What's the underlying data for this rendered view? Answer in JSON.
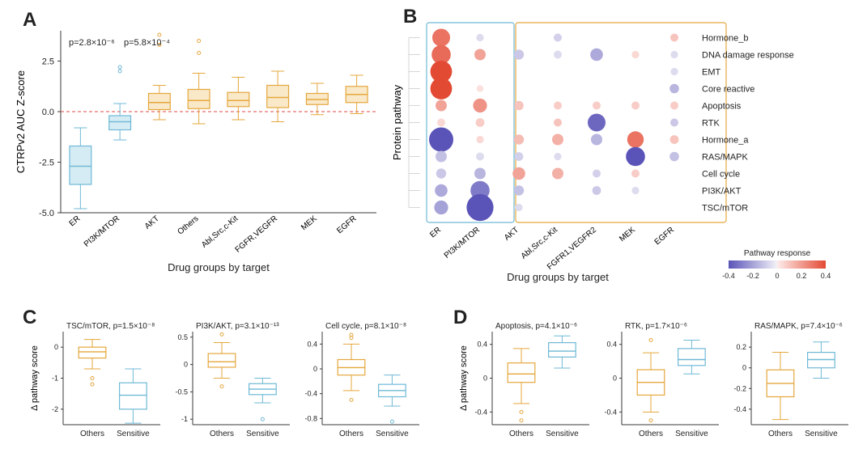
{
  "colors": {
    "blue": "#6fb9d6",
    "blue_fill": "#d6ecf4",
    "orange": "#e5a73d",
    "orange_fill": "#f9e9c9",
    "axis": "#3a3a3a",
    "grid": "#cccccc",
    "zero_line": "#e04848",
    "text": "#222222"
  },
  "panelA": {
    "letter": "A",
    "y_label": "CTRPv2 AUC Z-score",
    "x_label": "Drug groups by target",
    "pvals": [
      "p=2.8×10⁻⁶",
      "p=5.8×10⁻⁴"
    ],
    "y_min": -5,
    "y_max": 4,
    "y_ticks": [
      -5.0,
      -2.5,
      0.0,
      2.5
    ],
    "groups": [
      {
        "name": "ER",
        "color": "blue",
        "q1": -3.6,
        "med": -2.7,
        "q3": -1.7,
        "lo": -4.8,
        "hi": -0.8,
        "out": []
      },
      {
        "name": "PI3K/MTOR",
        "color": "blue",
        "q1": -0.9,
        "med": -0.5,
        "q3": -0.2,
        "lo": -1.4,
        "hi": 0.4,
        "out": [
          2.2,
          2.0
        ]
      },
      {
        "name": "AKT",
        "color": "orange",
        "q1": 0.1,
        "med": 0.45,
        "q3": 0.9,
        "lo": -0.4,
        "hi": 1.3,
        "out": [
          3.8,
          3.3
        ]
      },
      {
        "name": "Others",
        "color": "orange",
        "q1": 0.15,
        "med": 0.55,
        "q3": 1.1,
        "lo": -0.6,
        "hi": 1.9,
        "out": [
          3.5,
          2.9
        ]
      },
      {
        "name": "Abl,Src,c-Kit",
        "color": "orange",
        "q1": 0.25,
        "med": 0.55,
        "q3": 0.95,
        "lo": -0.4,
        "hi": 1.7,
        "out": []
      },
      {
        "name": "FGFR,VEGFR",
        "color": "orange",
        "q1": 0.2,
        "med": 0.7,
        "q3": 1.3,
        "lo": -0.5,
        "hi": 2.0,
        "out": []
      },
      {
        "name": "MEK",
        "color": "orange",
        "q1": 0.35,
        "med": 0.6,
        "q3": 0.9,
        "lo": -0.15,
        "hi": 1.4,
        "out": []
      },
      {
        "name": "EGFR",
        "color": "orange",
        "q1": 0.45,
        "med": 0.85,
        "q3": 1.25,
        "lo": -0.1,
        "hi": 1.8,
        "out": []
      }
    ]
  },
  "panelB": {
    "letter": "B",
    "x_label": "Drug groups by target",
    "y_label": "Protein pathway",
    "legend_title": "Pathway response",
    "legend_ticks": [
      -0.4,
      -0.2,
      0,
      0.2,
      0.4
    ],
    "cols": [
      "ER",
      "PI3K/MTOR",
      "AKT",
      "Abl,Src,c-Kit",
      "FGFR1,VEGFR2",
      "MEK",
      "EGFR"
    ],
    "rows": [
      "Hormone_b",
      "DNA damage response",
      "EMT",
      "Core reactive",
      "Apoptosis",
      "RTK",
      "Hormone_a",
      "RAS/MAPK",
      "Cell cycle",
      "PI3K/AKT",
      "TSC/mTOR"
    ],
    "group_box": {
      "blue": [
        0,
        1
      ],
      "orange": [
        2,
        6
      ]
    },
    "dots": [
      {
        "r": 0,
        "c": 0,
        "v": 0.3,
        "s": 2.0
      },
      {
        "r": 0,
        "c": 1,
        "v": -0.05,
        "s": 0.4
      },
      {
        "r": 0,
        "c": 3,
        "v": -0.08,
        "s": 0.5
      },
      {
        "r": 0,
        "c": 6,
        "v": 0.1,
        "s": 0.5
      },
      {
        "r": 1,
        "c": 0,
        "v": 0.32,
        "s": 2.2
      },
      {
        "r": 1,
        "c": 1,
        "v": 0.18,
        "s": 1.0
      },
      {
        "r": 1,
        "c": 2,
        "v": -0.1,
        "s": 0.8
      },
      {
        "r": 1,
        "c": 3,
        "v": -0.05,
        "s": 0.5
      },
      {
        "r": 1,
        "c": 4,
        "v": -0.18,
        "s": 1.2
      },
      {
        "r": 1,
        "c": 5,
        "v": 0.05,
        "s": 0.4
      },
      {
        "r": 1,
        "c": 6,
        "v": -0.05,
        "s": 0.4
      },
      {
        "r": 2,
        "c": 0,
        "v": 0.4,
        "s": 2.6
      },
      {
        "r": 2,
        "c": 6,
        "v": -0.05,
        "s": 0.4
      },
      {
        "r": 3,
        "c": 0,
        "v": 0.4,
        "s": 2.6
      },
      {
        "r": 3,
        "c": 1,
        "v": 0.03,
        "s": 0.3
      },
      {
        "r": 3,
        "c": 6,
        "v": -0.15,
        "s": 0.7
      },
      {
        "r": 4,
        "c": 0,
        "v": 0.18,
        "s": 1.0
      },
      {
        "r": 4,
        "c": 1,
        "v": 0.22,
        "s": 1.4
      },
      {
        "r": 4,
        "c": 2,
        "v": 0.1,
        "s": 0.7
      },
      {
        "r": 4,
        "c": 3,
        "v": 0.08,
        "s": 0.5
      },
      {
        "r": 4,
        "c": 4,
        "v": 0.08,
        "s": 0.5
      },
      {
        "r": 4,
        "c": 5,
        "v": 0.08,
        "s": 0.5
      },
      {
        "r": 4,
        "c": 6,
        "v": 0.08,
        "s": 0.5
      },
      {
        "r": 5,
        "c": 0,
        "v": 0.05,
        "s": 0.5
      },
      {
        "r": 5,
        "c": 1,
        "v": 0.08,
        "s": 0.6
      },
      {
        "r": 5,
        "c": 3,
        "v": 0.1,
        "s": 0.5
      },
      {
        "r": 5,
        "c": 4,
        "v": -0.35,
        "s": 2.0
      },
      {
        "r": 5,
        "c": 6,
        "v": -0.1,
        "s": 0.5
      },
      {
        "r": 6,
        "c": 0,
        "v": -0.4,
        "s": 3.0
      },
      {
        "r": 6,
        "c": 1,
        "v": 0.05,
        "s": 0.4
      },
      {
        "r": 6,
        "c": 2,
        "v": 0.12,
        "s": 0.8
      },
      {
        "r": 6,
        "c": 3,
        "v": 0.15,
        "s": 1.0
      },
      {
        "r": 6,
        "c": 4,
        "v": -0.15,
        "s": 1.0
      },
      {
        "r": 6,
        "c": 5,
        "v": 0.3,
        "s": 1.8
      },
      {
        "r": 6,
        "c": 6,
        "v": 0.1,
        "s": 0.6
      },
      {
        "r": 7,
        "c": 0,
        "v": -0.12,
        "s": 1.0
      },
      {
        "r": 7,
        "c": 1,
        "v": -0.05,
        "s": 0.5
      },
      {
        "r": 7,
        "c": 2,
        "v": -0.08,
        "s": 0.6
      },
      {
        "r": 7,
        "c": 3,
        "v": -0.05,
        "s": 0.4
      },
      {
        "r": 7,
        "c": 5,
        "v": -0.4,
        "s": 2.2
      },
      {
        "r": 7,
        "c": 6,
        "v": -0.12,
        "s": 0.7
      },
      {
        "r": 8,
        "c": 0,
        "v": -0.1,
        "s": 0.8
      },
      {
        "r": 8,
        "c": 1,
        "v": -0.15,
        "s": 1.0
      },
      {
        "r": 8,
        "c": 2,
        "v": 0.18,
        "s": 1.2
      },
      {
        "r": 8,
        "c": 3,
        "v": 0.15,
        "s": 1.0
      },
      {
        "r": 8,
        "c": 4,
        "v": -0.08,
        "s": 0.5
      },
      {
        "r": 8,
        "c": 5,
        "v": 0.08,
        "s": 0.5
      },
      {
        "r": 9,
        "c": 0,
        "v": -0.18,
        "s": 1.2
      },
      {
        "r": 9,
        "c": 1,
        "v": -0.3,
        "s": 2.2
      },
      {
        "r": 9,
        "c": 2,
        "v": -0.12,
        "s": 0.8
      },
      {
        "r": 9,
        "c": 4,
        "v": -0.1,
        "s": 0.6
      },
      {
        "r": 9,
        "c": 5,
        "v": -0.05,
        "s": 0.4
      },
      {
        "r": 10,
        "c": 0,
        "v": -0.2,
        "s": 1.4
      },
      {
        "r": 10,
        "c": 1,
        "v": -0.45,
        "s": 3.4
      },
      {
        "r": 10,
        "c": 2,
        "v": -0.05,
        "s": 0.4
      }
    ],
    "color_stops": [
      {
        "v": -0.4,
        "c": "#5a54b8"
      },
      {
        "v": 0,
        "c": "#f0eff6"
      },
      {
        "v": 0.001,
        "c": "#fdeceb"
      },
      {
        "v": 0.4,
        "c": "#e34a33"
      }
    ]
  },
  "panelC": {
    "letter": "C",
    "y_label": "Δ pathway score",
    "x_labels": [
      "Others",
      "Sensitive"
    ],
    "plots": [
      {
        "title": "TSC/mTOR, p=1.5×10⁻⁸",
        "y_min": -2.5,
        "y_max": 0.5,
        "y_ticks": [
          0,
          -1,
          -2
        ],
        "others": {
          "q1": -0.35,
          "med": -0.15,
          "q3": 0.0,
          "lo": -0.7,
          "hi": 0.25,
          "out": [
            -1.0,
            -1.2
          ]
        },
        "sensitive": {
          "q1": -2.0,
          "med": -1.55,
          "q3": -1.15,
          "lo": -2.45,
          "hi": -0.7,
          "out": []
        }
      },
      {
        "title": "PI3K/AKT, p=3.1×10⁻¹³",
        "y_min": -1.1,
        "y_max": 0.6,
        "y_ticks": [
          0.5,
          0.0,
          -0.5,
          -1.0
        ],
        "others": {
          "q1": -0.05,
          "med": 0.05,
          "q3": 0.2,
          "lo": -0.25,
          "hi": 0.4,
          "out": [
            0.55,
            -0.4
          ]
        },
        "sensitive": {
          "q1": -0.55,
          "med": -0.45,
          "q3": -0.35,
          "lo": -0.7,
          "hi": -0.25,
          "out": [
            -1.0
          ]
        }
      },
      {
        "title": "Cell cycle, p=8.1×10⁻⁸",
        "y_min": -0.9,
        "y_max": 0.6,
        "y_ticks": [
          0.4,
          0.0,
          -0.4,
          -0.8
        ],
        "others": {
          "q1": -0.1,
          "med": 0.02,
          "q3": 0.15,
          "lo": -0.35,
          "hi": 0.4,
          "out": [
            0.55,
            0.5,
            -0.5
          ]
        },
        "sensitive": {
          "q1": -0.45,
          "med": -0.35,
          "q3": -0.25,
          "lo": -0.6,
          "hi": -0.1,
          "out": [
            -0.85
          ]
        }
      }
    ]
  },
  "panelD": {
    "letter": "D",
    "y_label": "Δ pathway score",
    "x_labels": [
      "Others",
      "Sensitive"
    ],
    "plots": [
      {
        "title": "Apoptosis, p=4.1×10⁻⁶",
        "y_min": -0.55,
        "y_max": 0.55,
        "y_ticks": [
          0.4,
          0.0,
          -0.4
        ],
        "others": {
          "q1": -0.05,
          "med": 0.05,
          "q3": 0.18,
          "lo": -0.3,
          "hi": 0.35,
          "out": [
            -0.5,
            -0.4
          ]
        },
        "sensitive": {
          "q1": 0.25,
          "med": 0.32,
          "q3": 0.42,
          "lo": 0.12,
          "hi": 0.5,
          "out": []
        }
      },
      {
        "title": "RTK, p=1.7×10⁻⁶",
        "y_min": -0.55,
        "y_max": 0.55,
        "y_ticks": [
          0.4,
          0.0,
          -0.4
        ],
        "others": {
          "q1": -0.2,
          "med": -0.05,
          "q3": 0.1,
          "lo": -0.4,
          "hi": 0.3,
          "out": [
            -0.5,
            0.45
          ]
        },
        "sensitive": {
          "q1": 0.15,
          "med": 0.22,
          "q3": 0.35,
          "lo": 0.05,
          "hi": 0.45,
          "out": []
        }
      },
      {
        "title": "RAS/MAPK, p=7.4×10⁻⁶",
        "y_min": -0.55,
        "y_max": 0.35,
        "y_ticks": [
          0.2,
          0.0,
          -0.2,
          -0.4
        ],
        "others": {
          "q1": -0.28,
          "med": -0.15,
          "q3": -0.02,
          "lo": -0.5,
          "hi": 0.15,
          "out": []
        },
        "sensitive": {
          "q1": 0.0,
          "med": 0.08,
          "q3": 0.15,
          "lo": -0.1,
          "hi": 0.25,
          "out": []
        }
      }
    ]
  }
}
